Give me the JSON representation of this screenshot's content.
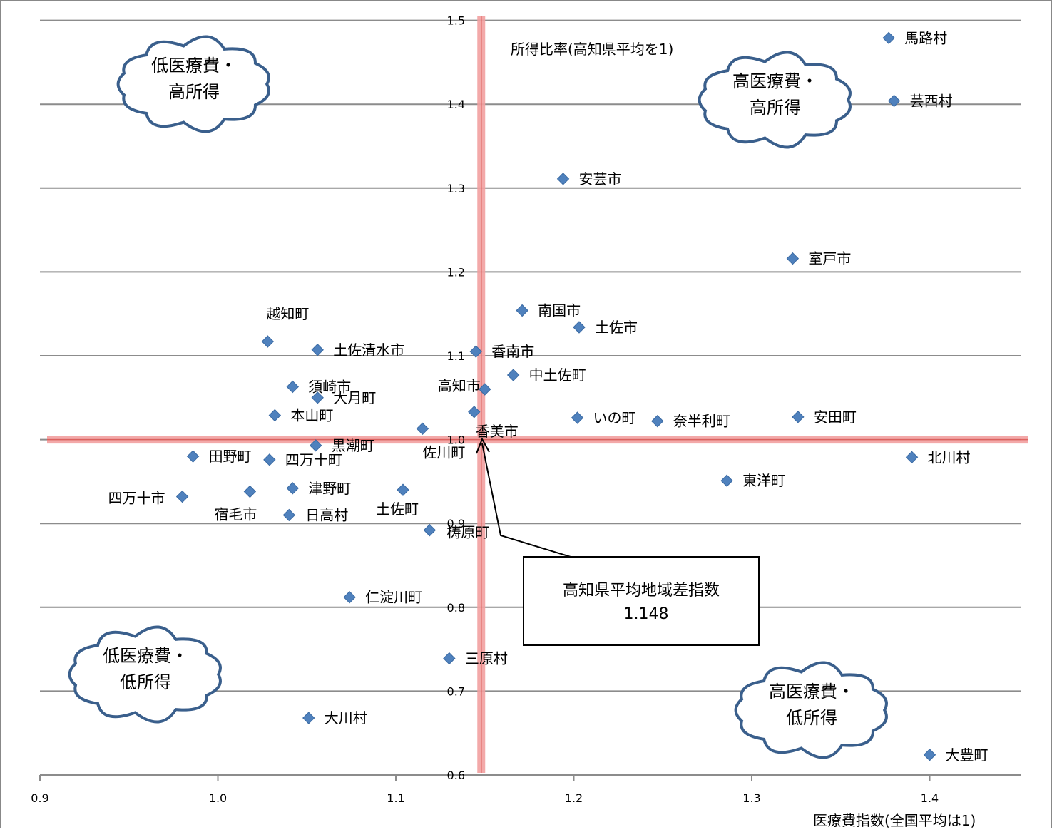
{
  "chart_data": {
    "type": "scatter",
    "title": "",
    "xlabel": "医療費指数(全国平均は1)",
    "ylabel": "所得比率(高知県平均を1)",
    "xlim": [
      0.9,
      1.45
    ],
    "ylim": [
      0.6,
      1.5
    ],
    "x_ticks": [
      "0.9",
      "1.0",
      "1.1",
      "1.2",
      "1.3",
      "1.4"
    ],
    "y_ticks": [
      "0.6",
      "0.7",
      "0.8",
      "0.9",
      "1.0",
      "1.1",
      "1.2",
      "1.3",
      "1.4",
      "1.5"
    ],
    "grid": "horizontal",
    "marker_color": "#4f81bd",
    "reference_line_color": "#f2a0a0",
    "reference_lines": {
      "x": 1.148,
      "y": 1.0
    },
    "points": [
      {
        "name": "馬路村",
        "x": 1.377,
        "y": 1.479
      },
      {
        "name": "芸西村",
        "x": 1.38,
        "y": 1.404
      },
      {
        "name": "安芸市",
        "x": 1.194,
        "y": 1.311
      },
      {
        "name": "室戸市",
        "x": 1.323,
        "y": 1.216
      },
      {
        "name": "南国市",
        "x": 1.171,
        "y": 1.154
      },
      {
        "name": "土佐市",
        "x": 1.203,
        "y": 1.134
      },
      {
        "name": "越知町",
        "x": 1.028,
        "y": 1.117
      },
      {
        "name": "土佐清水市",
        "x": 1.056,
        "y": 1.107
      },
      {
        "name": "香南市",
        "x": 1.145,
        "y": 1.105
      },
      {
        "name": "中土佐町",
        "x": 1.166,
        "y": 1.077
      },
      {
        "name": "須崎市",
        "x": 1.042,
        "y": 1.063
      },
      {
        "name": "高知市",
        "x": 1.15,
        "y": 1.06
      },
      {
        "name": "大月町",
        "x": 1.056,
        "y": 1.05
      },
      {
        "name": "香美市",
        "x": 1.144,
        "y": 1.033
      },
      {
        "name": "本山町",
        "x": 1.032,
        "y": 1.029
      },
      {
        "name": "いの町",
        "x": 1.202,
        "y": 1.026
      },
      {
        "name": "奈半利町",
        "x": 1.247,
        "y": 1.022
      },
      {
        "name": "安田町",
        "x": 1.326,
        "y": 1.027
      },
      {
        "name": "佐川町",
        "x": 1.115,
        "y": 1.013
      },
      {
        "name": "黒潮町",
        "x": 1.055,
        "y": 0.993
      },
      {
        "name": "田野町",
        "x": 0.986,
        "y": 0.98
      },
      {
        "name": "四万十町",
        "x": 1.029,
        "y": 0.976
      },
      {
        "name": "北川村",
        "x": 1.39,
        "y": 0.979
      },
      {
        "name": "東洋町",
        "x": 1.286,
        "y": 0.951
      },
      {
        "name": "津野町",
        "x": 1.042,
        "y": 0.942
      },
      {
        "name": "土佐町",
        "x": 1.104,
        "y": 0.94
      },
      {
        "name": "宿毛市",
        "x": 1.018,
        "y": 0.938
      },
      {
        "name": "四万十市",
        "x": 0.98,
        "y": 0.932
      },
      {
        "name": "日高村",
        "x": 1.04,
        "y": 0.91
      },
      {
        "name": "梼原町",
        "x": 1.119,
        "y": 0.892
      },
      {
        "name": "仁淀川町",
        "x": 1.074,
        "y": 0.812
      },
      {
        "name": "三原村",
        "x": 1.13,
        "y": 0.739
      },
      {
        "name": "大川村",
        "x": 1.051,
        "y": 0.668
      },
      {
        "name": "大豊町",
        "x": 1.4,
        "y": 0.624
      }
    ],
    "annotations": {
      "callout_title": "高知県平均地域差指数",
      "callout_value": "1.148",
      "quadrants": {
        "top_left": [
          "低医療費・",
          "高所得"
        ],
        "top_right": [
          "高医療費・",
          "高所得"
        ],
        "bottom_left": [
          "低医療費・",
          "低所得"
        ],
        "bottom_right": [
          "高医療費・",
          "低所得"
        ]
      }
    }
  }
}
